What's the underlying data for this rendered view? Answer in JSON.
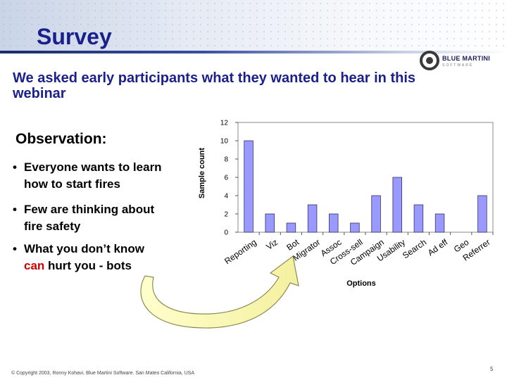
{
  "slide": {
    "title": "Survey",
    "subtitle": "We asked early participants what they wanted to hear in this webinar",
    "observation_title": "Observation:",
    "bullets": [
      {
        "line1": "Everyone wants to learn",
        "line2": "how to start fires"
      },
      {
        "line1": "Few are thinking about",
        "line2": "fire safety"
      },
      {
        "line1_pre": "What you don’t know",
        "line2_red": "can",
        "line2_post": " hurt you -  bots"
      }
    ],
    "bullet_symbol": "•",
    "footer": "© Copyright 2003, Ronny Kohavi, Blue Martini Software. San Mateo California, USA",
    "page_number": "5"
  },
  "logo": {
    "text": "BLUE MARTINI",
    "sub": "SOFTWARE"
  },
  "colors": {
    "title": "#1a1f8c",
    "bar": "#9999ff",
    "red": "#cc0000"
  },
  "chart_data": {
    "type": "bar",
    "categories": [
      "Reporting",
      "Viz",
      "Bot",
      "Migrator",
      "Assoc",
      "Cross-sell",
      "Campaign",
      "Usability",
      "Search",
      "Ad eff",
      "Geo",
      "Referrer"
    ],
    "values": [
      10,
      2,
      1,
      3,
      2,
      1,
      4,
      6,
      3,
      2,
      0,
      4
    ],
    "xlabel": "Options",
    "ylabel": "Sample count",
    "ylim": [
      0,
      12
    ],
    "yticks": [
      0,
      2,
      4,
      6,
      8,
      10,
      12
    ],
    "grid": false,
    "legend": "none"
  }
}
